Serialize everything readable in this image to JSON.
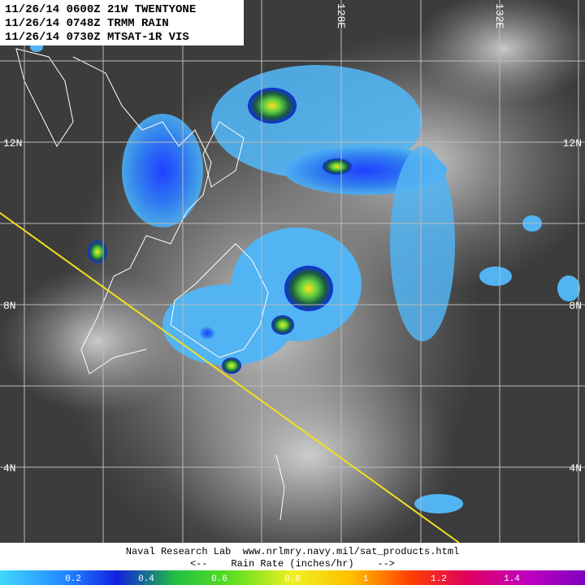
{
  "header": {
    "lines": [
      "11/26/14 0600Z 21W TWENTYONE",
      "11/26/14 0748Z TRMM RAIN",
      "11/26/14 0730Z MTSAT-1R VIS"
    ]
  },
  "map": {
    "lat_labels": [
      "12N",
      "8N",
      "4N"
    ],
    "lon_labels": [
      "128E",
      "132E"
    ]
  },
  "footer": {
    "credit": "Naval Research Lab  www.nrlmry.navy.mil/sat_products.html",
    "scale_title": "<--    Rain Rate (inches/hr)    -->"
  },
  "colorbar": {
    "lim": [
      0,
      1.6
    ],
    "ticks": [
      0.2,
      0.4,
      0.6,
      0.8,
      1,
      1.2,
      1.4
    ]
  }
}
